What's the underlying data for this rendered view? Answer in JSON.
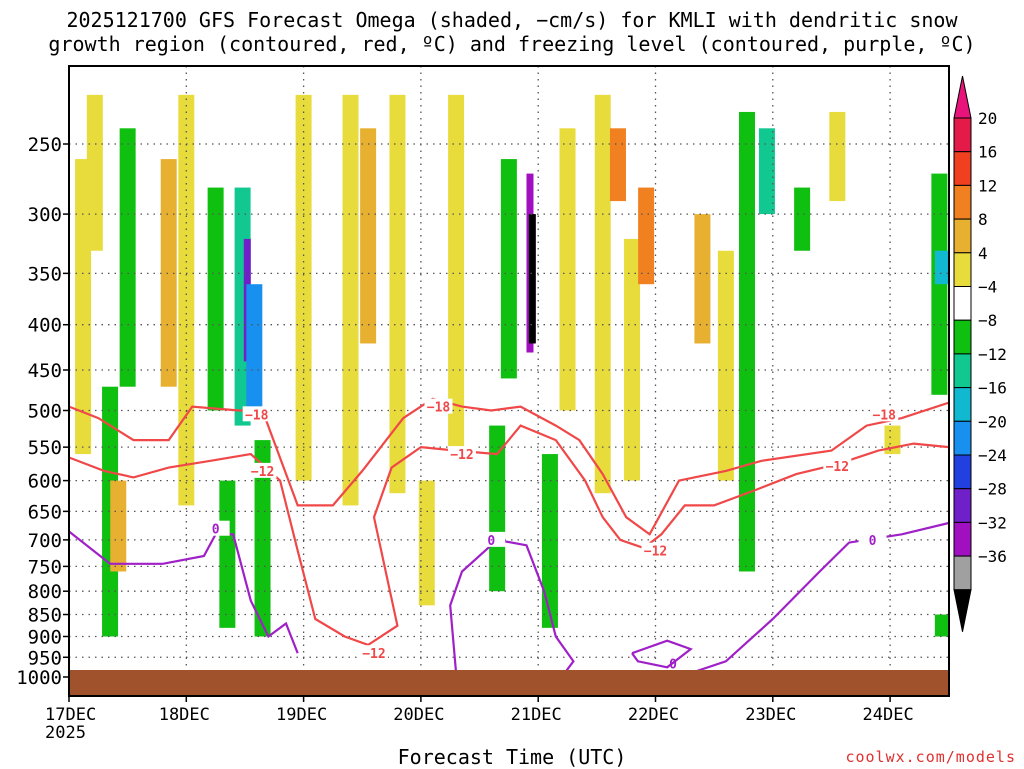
{
  "chart_data": {
    "type": "heatmap",
    "title_line1": "2025121700 GFS Forecast Omega (shaded, −cm/s) for KMLI with dendritic snow",
    "title_line2": "growth region (contoured, red, ºC) and freezing level (contoured, purple, ºC)",
    "xlabel": "Forecast Time (UTC)",
    "credit": "coolwx.com/models",
    "x_ticks": [
      "17DEC",
      "18DEC",
      "19DEC",
      "20DEC",
      "21DEC",
      "22DEC",
      "23DEC",
      "24DEC"
    ],
    "x_year": "2025",
    "x_range_days": [
      0,
      7.5
    ],
    "y_ticks": [
      250,
      300,
      350,
      400,
      450,
      500,
      550,
      600,
      650,
      700,
      750,
      800,
      850,
      900,
      950,
      1000
    ],
    "y_range_hpa": [
      200,
      1020
    ],
    "colorbar": {
      "labels": [
        "20",
        "16",
        "12",
        "8",
        "4",
        "−4",
        "−8",
        "−12",
        "−16",
        "−20",
        "−24",
        "−28",
        "−32",
        "−36"
      ],
      "colors": [
        "#e41a48",
        "#f04020",
        "#f08020",
        "#e8b030",
        "#e8dc3c",
        "#ffffff",
        "#10c010",
        "#10c890",
        "#10b8d0",
        "#1890f0",
        "#2040e0",
        "#7020c8",
        "#a010c0",
        "#a0a0a0",
        "#000000"
      ],
      "top_arrow_color": "#e8147c",
      "bottom_arrow_color": "#000000"
    },
    "omega_cells": [
      {
        "t": 0.12,
        "p0": 260,
        "p1": 560,
        "v": 5
      },
      {
        "t": 0.22,
        "p0": 220,
        "p1": 330,
        "v": 5
      },
      {
        "t": 0.35,
        "p0": 470,
        "p1": 900,
        "v": -6
      },
      {
        "t": 0.42,
        "p0": 600,
        "p1": 760,
        "v": 9
      },
      {
        "t": 0.5,
        "p0": 240,
        "p1": 470,
        "v": -6
      },
      {
        "t": 0.85,
        "p0": 260,
        "p1": 470,
        "v": 9
      },
      {
        "t": 1.0,
        "p0": 220,
        "p1": 640,
        "v": 5
      },
      {
        "t": 1.25,
        "p0": 280,
        "p1": 500,
        "v": -6
      },
      {
        "t": 1.35,
        "p0": 600,
        "p1": 880,
        "v": -6
      },
      {
        "t": 1.48,
        "p0": 280,
        "p1": 520,
        "v": -10
      },
      {
        "t": 1.52,
        "p0": 320,
        "p1": 440,
        "v": -27
      },
      {
        "t": 1.58,
        "p0": 360,
        "p1": 500,
        "v": -18
      },
      {
        "t": 1.65,
        "p0": 540,
        "p1": 900,
        "v": -6
      },
      {
        "t": 2.0,
        "p0": 220,
        "p1": 600,
        "v": 5
      },
      {
        "t": 2.4,
        "p0": 220,
        "p1": 640,
        "v": 5
      },
      {
        "t": 2.55,
        "p0": 240,
        "p1": 420,
        "v": 9
      },
      {
        "t": 2.8,
        "p0": 220,
        "p1": 620,
        "v": 5
      },
      {
        "t": 3.05,
        "p0": 600,
        "p1": 830,
        "v": 5
      },
      {
        "t": 3.3,
        "p0": 220,
        "p1": 560,
        "v": 5
      },
      {
        "t": 3.65,
        "p0": 520,
        "p1": 800,
        "v": -6
      },
      {
        "t": 3.75,
        "p0": 260,
        "p1": 460,
        "v": -6
      },
      {
        "t": 3.93,
        "p0": 270,
        "p1": 430,
        "v": -28
      },
      {
        "t": 3.95,
        "p0": 300,
        "p1": 420,
        "v": -40
      },
      {
        "t": 4.1,
        "p0": 560,
        "p1": 880,
        "v": -6
      },
      {
        "t": 4.25,
        "p0": 240,
        "p1": 500,
        "v": 5
      },
      {
        "t": 4.55,
        "p0": 220,
        "p1": 620,
        "v": 5
      },
      {
        "t": 4.68,
        "p0": 240,
        "p1": 290,
        "v": 14
      },
      {
        "t": 4.8,
        "p0": 320,
        "p1": 600,
        "v": 5
      },
      {
        "t": 4.92,
        "p0": 280,
        "p1": 360,
        "v": 12
      },
      {
        "t": 5.4,
        "p0": 300,
        "p1": 420,
        "v": 9
      },
      {
        "t": 5.6,
        "p0": 330,
        "p1": 600,
        "v": 5
      },
      {
        "t": 5.78,
        "p0": 230,
        "p1": 760,
        "v": -6
      },
      {
        "t": 5.95,
        "p0": 240,
        "p1": 300,
        "v": -10
      },
      {
        "t": 6.55,
        "p0": 230,
        "p1": 290,
        "v": 5
      },
      {
        "t": 6.25,
        "p0": 280,
        "p1": 330,
        "v": -6
      },
      {
        "t": 7.02,
        "p0": 520,
        "p1": 560,
        "v": 5
      },
      {
        "t": 7.42,
        "p0": 270,
        "p1": 480,
        "v": -6
      },
      {
        "t": 7.45,
        "p0": 330,
        "p1": 360,
        "v": -12
      },
      {
        "t": 7.45,
        "p0": 850,
        "p1": 900,
        "v": -6
      }
    ],
    "contours": [
      {
        "level": "-18",
        "color": "#f04848",
        "label": "−18",
        "points": [
          [
            0,
            495
          ],
          [
            0.25,
            510
          ],
          [
            0.55,
            540
          ],
          [
            0.85,
            540
          ],
          [
            1.05,
            495
          ],
          [
            1.45,
            500
          ],
          [
            1.65,
            500
          ],
          [
            1.95,
            640
          ],
          [
            2.25,
            640
          ],
          [
            2.5,
            585
          ],
          [
            2.85,
            510
          ],
          [
            3.1,
            485
          ],
          [
            3.35,
            495
          ],
          [
            3.6,
            500
          ],
          [
            3.85,
            495
          ],
          [
            4.15,
            520
          ],
          [
            4.35,
            540
          ],
          [
            4.55,
            590
          ],
          [
            4.75,
            660
          ],
          [
            4.95,
            690
          ],
          [
            5.2,
            600
          ],
          [
            5.6,
            585
          ],
          [
            5.9,
            570
          ],
          [
            6.5,
            555
          ],
          [
            6.8,
            520
          ],
          [
            7.1,
            510
          ],
          [
            7.5,
            490
          ]
        ],
        "label_pos": [
          [
            1.6,
            505
          ],
          [
            3.15,
            495
          ],
          [
            6.95,
            505
          ]
        ]
      },
      {
        "level": "-12",
        "color": "#f04848",
        "label": "−12",
        "points": [
          [
            0,
            565
          ],
          [
            0.3,
            585
          ],
          [
            0.55,
            595
          ],
          [
            0.85,
            580
          ],
          [
            1.2,
            570
          ],
          [
            1.55,
            560
          ],
          [
            1.8,
            600
          ],
          [
            1.95,
            720
          ],
          [
            2.1,
            860
          ],
          [
            2.35,
            900
          ],
          [
            2.55,
            920
          ],
          [
            2.8,
            875
          ],
          [
            2.7,
            760
          ],
          [
            2.6,
            660
          ],
          [
            2.75,
            580
          ],
          [
            3.0,
            550
          ],
          [
            3.3,
            555
          ],
          [
            3.65,
            560
          ],
          [
            3.85,
            520
          ],
          [
            4.15,
            540
          ],
          [
            4.4,
            600
          ],
          [
            4.55,
            660
          ],
          [
            4.7,
            700
          ],
          [
            4.9,
            715
          ],
          [
            5.05,
            690
          ],
          [
            5.25,
            640
          ],
          [
            5.5,
            640
          ],
          [
            5.85,
            615
          ],
          [
            6.2,
            590
          ],
          [
            6.55,
            575
          ],
          [
            6.9,
            555
          ],
          [
            7.2,
            545
          ],
          [
            7.5,
            550
          ]
        ],
        "label_pos": [
          [
            1.65,
            585
          ],
          [
            2.6,
            940
          ],
          [
            3.35,
            560
          ],
          [
            5.0,
            720
          ],
          [
            6.55,
            578
          ]
        ]
      },
      {
        "level": "0",
        "color": "#a020c8",
        "label": "0",
        "points": [
          [
            0,
            685
          ],
          [
            0.35,
            745
          ],
          [
            0.8,
            745
          ],
          [
            1.15,
            730
          ],
          [
            1.25,
            690
          ],
          [
            1.4,
            690
          ],
          [
            1.55,
            820
          ],
          [
            1.7,
            900
          ],
          [
            1.85,
            870
          ],
          [
            1.95,
            940
          ]
        ],
        "label_pos": [
          [
            1.25,
            680
          ]
        ]
      },
      {
        "level": "0b",
        "color": "#a020c8",
        "label": "0",
        "points": [
          [
            3.3,
            990
          ],
          [
            3.25,
            830
          ],
          [
            3.35,
            760
          ],
          [
            3.65,
            700
          ],
          [
            3.9,
            710
          ],
          [
            4.05,
            800
          ],
          [
            4.15,
            900
          ],
          [
            4.3,
            960
          ],
          [
            4.2,
            1000
          ]
        ],
        "label_pos": [
          [
            3.6,
            700
          ]
        ]
      },
      {
        "level": "0c",
        "color": "#a020c8",
        "label": "0",
        "points": [
          [
            5.2,
            1000
          ],
          [
            5.6,
            960
          ],
          [
            6.0,
            860
          ],
          [
            6.4,
            760
          ],
          [
            6.65,
            705
          ],
          [
            7.1,
            690
          ],
          [
            7.5,
            670
          ]
        ],
        "label_pos": [
          [
            6.85,
            700
          ],
          [
            5.15,
            965
          ]
        ]
      },
      {
        "level": "0d",
        "color": "#a020c8",
        "label": "",
        "points": [
          [
            4.8,
            940
          ],
          [
            5.1,
            910
          ],
          [
            5.3,
            930
          ],
          [
            5.1,
            975
          ],
          [
            4.85,
            960
          ],
          [
            4.8,
            940
          ]
        ],
        "label_pos": []
      }
    ]
  }
}
